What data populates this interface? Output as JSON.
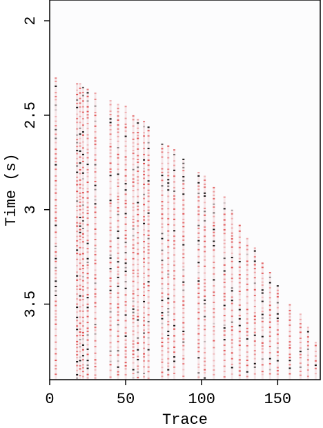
{
  "chart_data": {
    "type": "seismic",
    "xlabel": "Trace",
    "ylabel": "Time (s)",
    "xlim": [
      0,
      178
    ],
    "ylim": [
      1.89,
      3.9
    ],
    "xticks": [
      0,
      50,
      100,
      150
    ],
    "yticks": [
      2,
      2.5,
      3,
      3.5
    ],
    "y_inverted": true,
    "colors": [
      "#d40000",
      "#000000"
    ],
    "x": [
      4,
      18,
      20,
      22,
      25,
      30,
      40,
      45,
      50,
      55,
      58,
      62,
      65,
      74,
      78,
      82,
      88,
      98,
      102,
      108,
      115,
      120,
      125,
      130,
      135,
      140,
      145,
      150,
      158,
      165,
      170,
      175
    ],
    "values": [
      2.3,
      2.33,
      2.33,
      2.35,
      2.36,
      2.38,
      2.42,
      2.44,
      2.45,
      2.5,
      2.52,
      2.53,
      2.56,
      2.65,
      2.66,
      2.68,
      2.73,
      2.8,
      2.82,
      2.88,
      2.93,
      3.0,
      3.08,
      3.15,
      3.2,
      3.28,
      3.33,
      3.4,
      3.5,
      3.55,
      3.62,
      3.7
    ]
  }
}
